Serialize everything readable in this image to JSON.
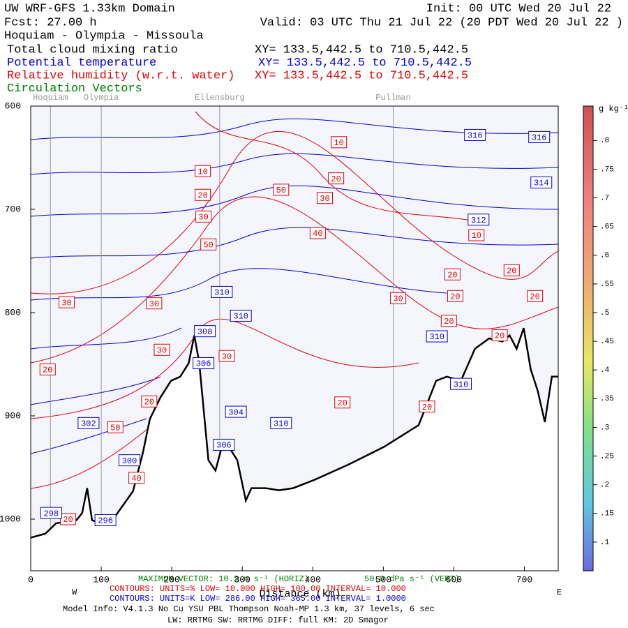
{
  "chart_data": {
    "type": "cross-section",
    "title": "UW WRF-GFS 1.33km Domain",
    "init": "Init: 00 UTC Wed 20 Jul 22",
    "fcst": "Fcst:   27.00 h",
    "valid": "Valid: 03 UTC Thu 21 Jul 22   (20 PDT Wed 20 Jul 22  )",
    "route": "Hoquiam - Olympia - Missoula",
    "fields": [
      {
        "name": "Total cloud mixing ratio",
        "xy": "XY= 133.5,442.5 to 710.5,442.5",
        "color": "#000000"
      },
      {
        "name": "Potential temperature",
        "xy": "XY= 133.5,442.5 to 710.5,442.5",
        "color": "#0000dd"
      },
      {
        "name": "Relative humidity (w.r.t. water)",
        "xy": "XY= 133.5,442.5 to 710.5,442.5",
        "color": "#e00000"
      },
      {
        "name": "Circulation Vectors",
        "color": "#008000"
      }
    ],
    "locations": {
      "names": [
        "Hoquiam",
        "Olympia",
        "Ellensburg",
        "Pullman"
      ],
      "x": [
        28,
        100,
        268,
        514
      ]
    },
    "xlim": [
      0,
      748
    ],
    "xticks": [
      0,
      100,
      200,
      300,
      400,
      500,
      600,
      700
    ],
    "ylim": [
      600,
      1050
    ],
    "yticks": [
      600,
      700,
      800,
      900,
      1000
    ],
    "terrain": {
      "color": "#000000",
      "x": [
        0,
        21,
        36,
        65,
        73,
        80,
        87,
        100,
        120,
        145,
        159,
        169,
        184,
        199,
        212,
        224,
        232,
        239,
        252,
        262,
        271,
        281,
        293,
        305,
        313,
        333,
        352,
        372,
        402,
        451,
        501,
        550,
        575,
        590,
        610,
        630,
        650,
        669,
        679,
        689,
        699,
        709,
        719,
        729,
        739,
        748
      ],
      "values": [
        1018,
        1014,
        1004,
        1001,
        994,
        970,
        1001,
        1004,
        997,
        973,
        936,
        903,
        882,
        866,
        862,
        849,
        822,
        849,
        943,
        953,
        930,
        930,
        943,
        982,
        970,
        970,
        972,
        970,
        962,
        947,
        930,
        909,
        866,
        862,
        866,
        835,
        825,
        828,
        822,
        835,
        815,
        855,
        876,
        906,
        862,
        862
      ]
    },
    "rh_labels": {
      "color": "#e00000",
      "values": [
        10,
        20,
        10,
        20,
        50,
        30,
        30,
        50,
        40,
        10,
        20,
        20,
        30,
        30,
        30,
        20,
        20,
        20,
        20,
        30,
        30,
        20,
        20,
        20,
        50,
        40,
        20,
        20
      ],
      "x": [
        437,
        433,
        244,
        244,
        355,
        417,
        245,
        252,
        407,
        632,
        682,
        598,
        51,
        175,
        521,
        602,
        715,
        593,
        665,
        186,
        278,
        24,
        168,
        442,
        120,
        150,
        562,
        53
      ],
      "y": [
        635,
        670,
        663,
        686,
        681,
        689,
        707,
        734,
        723,
        725,
        759,
        763,
        790,
        791,
        786,
        784,
        784,
        808,
        822,
        836,
        842,
        855,
        886,
        887,
        911,
        960,
        891,
        1000
      ]
    },
    "theta_labels": {
      "color": "#0000dd",
      "values": [
        316,
        316,
        314,
        312,
        310,
        310,
        308,
        306,
        310,
        310,
        304,
        310,
        302,
        306,
        300,
        298,
        296
      ],
      "x": [
        630,
        721,
        724,
        635,
        271,
        298,
        247,
        245,
        576,
        610,
        291,
        355,
        82,
        274,
        140,
        29,
        106
      ],
      "y": [
        628,
        630,
        674,
        710,
        780,
        803,
        818,
        849,
        823,
        869,
        896,
        907,
        907,
        928,
        943,
        994,
        1001
      ]
    },
    "colorbar": {
      "label": "g kg⁻¹",
      "lim": [
        0.05,
        0.86
      ],
      "ticks": [
        {
          "value": 0.8,
          "label": ".8"
        },
        {
          "value": 0.75,
          "label": ".75"
        },
        {
          "value": 0.7,
          "label": ".7"
        },
        {
          "value": 0.65,
          "label": ".65"
        },
        {
          "value": 0.6,
          "label": ".6"
        },
        {
          "value": 0.55,
          "label": ".55"
        },
        {
          "value": 0.5,
          "label": ".5"
        },
        {
          "value": 0.45,
          "label": ".45"
        },
        {
          "value": 0.4,
          "label": ".4"
        },
        {
          "value": 0.35,
          "label": ".35"
        },
        {
          "value": 0.3,
          "label": ".3"
        },
        {
          "value": 0.25,
          "label": ".25"
        },
        {
          "value": 0.2,
          "label": ".2"
        },
        {
          "value": 0.15,
          "label": ".15"
        },
        {
          "value": 0.1,
          "label": ".1"
        }
      ]
    },
    "west": "W",
    "east": "E",
    "xlabel": "Distance (km)",
    "max_vector_h": "MAXIMUM VECTOR: 10.2 m s⁻¹ (HORIZ)",
    "max_vector_v": "50.0 dPa s⁻¹ (VERT)",
    "rh_contours": "CONTOURS:  UNITS=%  LOW=  10.000    HIGH=  100.00    INTERVAL=  10.000",
    "theta_contours": "CONTOURS:  UNITS=K  LOW=  286.00    HIGH=  365.00    INTERVAL=  1.0000",
    "model_info": "Model Info: V4.1.3    No Cu    YSU PBL   Thompson    Noah-MP    1.3 km,   37 levels,    6 sec",
    "physics": "LW: RRTMG  SW: RRTMG    DIFF: full    KM: 2D Smagor"
  }
}
